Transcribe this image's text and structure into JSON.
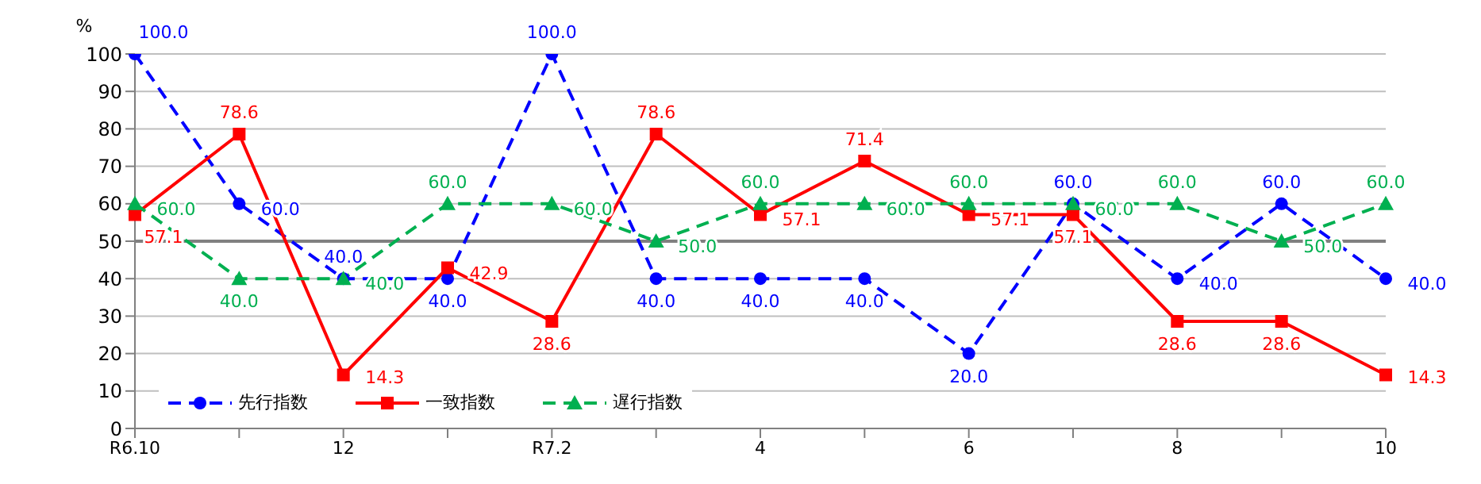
{
  "chart_data": {
    "type": "line",
    "ylabel": "%",
    "categories": [
      "R6.10",
      null,
      "12",
      null,
      "R7.2",
      null,
      "4",
      null,
      "6",
      null,
      "8",
      null,
      "10"
    ],
    "ylim": [
      0,
      100
    ],
    "yticks": [
      0,
      10,
      20,
      30,
      40,
      50,
      60,
      70,
      80,
      90,
      100
    ],
    "grid": "y",
    "legend": "bottom left",
    "ref_lines": [
      {
        "axis": "y",
        "value": 50,
        "color": "#808080"
      }
    ],
    "series": [
      {
        "name": "先行指数",
        "color": "#0000ff",
        "marker": "circle",
        "line_style": "dashed",
        "values": [
          100,
          60,
          40,
          40,
          100,
          40,
          40,
          40,
          20,
          60,
          40,
          60,
          40
        ],
        "value_labels": [
          "100.0",
          "60.0",
          "40.0",
          "40.0",
          "100.0",
          "40.0",
          "40.0",
          "40.0",
          "20.0",
          "60.0",
          "40.0",
          "60.0",
          "40.0"
        ]
      },
      {
        "name": "一致指数",
        "color": "#ff0000",
        "marker": "square",
        "line_style": "solid",
        "values": [
          57.1,
          78.6,
          14.3,
          42.9,
          28.6,
          78.6,
          57.1,
          71.4,
          57.1,
          57.1,
          28.6,
          28.6,
          14.3
        ],
        "value_labels": [
          "57.1",
          "78.6",
          "14.3",
          "42.9",
          "28.6",
          "78.6",
          "57.1",
          "71.4",
          "57.1",
          "57.1",
          "28.6",
          "28.6",
          "14.3"
        ]
      },
      {
        "name": "遅行指数",
        "color": "#00b050",
        "marker": "triangle",
        "line_style": "dashed",
        "values": [
          60,
          40,
          40,
          60,
          60,
          50,
          60,
          60,
          60,
          60,
          60,
          50,
          60
        ],
        "value_labels": [
          "60.0",
          "40.0",
          "40.0",
          "60.0",
          "60.0",
          "50.0",
          "60.0",
          "60.0",
          "60.0",
          "60.0",
          "60.0",
          "50.0",
          "60.0"
        ]
      }
    ]
  }
}
